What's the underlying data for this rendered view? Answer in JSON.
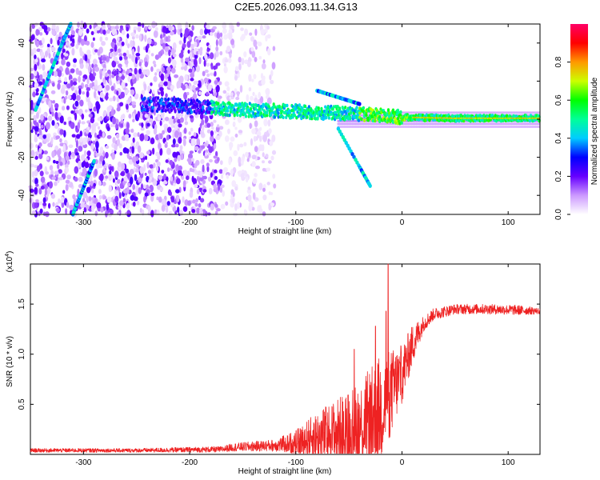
{
  "title": "C2E5.2026.093.11.34.G13",
  "chart_data": [
    {
      "type": "heatmap",
      "name": "spectrogram",
      "xlabel": "Height of straight line (km)",
      "ylabel": "Frequency (Hz)",
      "xlim": [
        -350,
        130
      ],
      "ylim": [
        -50,
        50
      ],
      "xticks": [
        -300,
        -200,
        -100,
        0,
        100
      ],
      "yticks": [
        -40,
        -20,
        0,
        20,
        40
      ],
      "colorbar": {
        "label": "Normalized spectral amplitude",
        "range": [
          0,
          1
        ],
        "ticks": [
          "0.0",
          "0.2",
          "0.4",
          "0.6",
          "0.8"
        ],
        "colors": [
          "#ffffff",
          "#cc99ff",
          "#6600ff",
          "#0000ff",
          "#00ccff",
          "#00ff99",
          "#00ff00",
          "#ccff00",
          "#ff9900",
          "#ff0000",
          "#ff0066"
        ]
      },
      "features": {
        "dominant_line_hz": [
          [
            -240,
            8
          ],
          [
            -150,
            5
          ],
          [
            -100,
            4
          ],
          [
            -50,
            3
          ],
          [
            0,
            1
          ],
          [
            50,
            0.5
          ],
          [
            130,
            0.5
          ]
        ],
        "diagonal_trace_upper": [
          [
            -345,
            5
          ],
          [
            -320,
            40
          ],
          [
            -312,
            50
          ]
        ],
        "diagonal_trace_lower": [
          [
            -310,
            -50
          ],
          [
            -290,
            -22
          ]
        ],
        "branch_up": [
          [
            -80,
            15
          ],
          [
            -40,
            8
          ]
        ],
        "branch_down": [
          [
            -60,
            -5
          ],
          [
            -40,
            -25
          ],
          [
            -30,
            -35
          ]
        ],
        "noise_edges_km": [
          -170,
          -120
        ]
      }
    },
    {
      "type": "line",
      "name": "snr",
      "xlabel": "Height of straight line (km)",
      "ylabel": "SNR (10 * v/v)",
      "yscale_label": "(x10",
      "yscale_exponent": "4",
      "xlim": [
        -350,
        130
      ],
      "ylim": [
        0,
        1.9
      ],
      "xticks": [
        -300,
        -200,
        -100,
        0,
        100
      ],
      "yticks": [
        "0.5",
        "1.0",
        "1.5"
      ],
      "color": "#ee2222",
      "envelope": {
        "x": [
          -350,
          -250,
          -170,
          -160,
          -120,
          -100,
          -80,
          -60,
          -40,
          -20,
          0,
          10,
          20,
          30,
          50,
          80,
          110,
          130
        ],
        "base": [
          0.04,
          0.04,
          0.05,
          0.07,
          0.09,
          0.12,
          0.18,
          0.22,
          0.28,
          0.45,
          0.8,
          1.1,
          1.3,
          1.4,
          1.45,
          1.45,
          1.44,
          1.43
        ],
        "amp": [
          0.02,
          0.02,
          0.03,
          0.04,
          0.06,
          0.12,
          0.25,
          0.35,
          0.45,
          0.55,
          0.3,
          0.2,
          0.08,
          0.06,
          0.05,
          0.05,
          0.05,
          0.03
        ]
      },
      "spikes": [
        [
          -13,
          1.93
        ],
        [
          -15,
          1.43
        ],
        [
          -25,
          1.28
        ],
        [
          -45,
          1.05
        ]
      ]
    }
  ]
}
